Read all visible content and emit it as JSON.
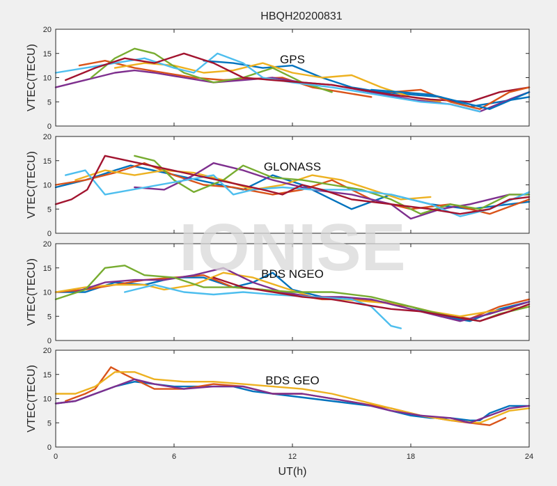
{
  "figure": {
    "title": "HBQH20200831",
    "xlabel": "UT(h)",
    "watermark": "IONISE"
  },
  "chart_data": [
    {
      "type": "line",
      "annotation": "GPS",
      "ylabel": "VTEC(TECU)",
      "xlim": [
        0,
        24
      ],
      "ylim": [
        0,
        20
      ],
      "x_ticks": [
        0,
        6,
        12,
        18,
        24
      ],
      "y_ticks": [
        0,
        5,
        10,
        15,
        20
      ],
      "series": [
        {
          "color": "#0072BD",
          "x": [
            7.5,
            9,
            10.5,
            12,
            13.5,
            15,
            16.5,
            18,
            19.5,
            21,
            22.5,
            24
          ],
          "y": [
            13.5,
            13,
            12,
            12.5,
            10,
            8,
            7,
            6.5,
            6,
            4,
            5,
            6
          ]
        },
        {
          "color": "#D95319",
          "x": [
            1.2,
            2.5,
            4,
            5.5,
            7,
            8.5,
            10,
            11.5,
            13,
            14.5,
            16
          ],
          "y": [
            12.5,
            13.5,
            12,
            11,
            10,
            9.5,
            9.8,
            10,
            8,
            7,
            6
          ]
        },
        {
          "color": "#EDB120",
          "x": [
            3,
            4.5,
            6,
            7.5,
            9,
            10.5,
            12,
            13.5,
            15,
            16.5,
            18,
            19.5
          ],
          "y": [
            12,
            13,
            12.5,
            11,
            11.5,
            13,
            11,
            10,
            10.5,
            8,
            6,
            5
          ]
        },
        {
          "color": "#7E2F8E",
          "x": [
            0,
            1,
            2,
            3,
            4,
            5,
            6.5,
            8,
            9.5,
            11,
            12.5,
            14,
            16,
            18,
            20,
            21.5,
            23,
            24
          ],
          "y": [
            8,
            9,
            10,
            11,
            11.5,
            11,
            10,
            9,
            9.5,
            10,
            9,
            8.5,
            7,
            5.5,
            4.5,
            3,
            5.5,
            7
          ]
        },
        {
          "color": "#77AC30",
          "x": [
            1.8,
            3,
            4,
            5,
            6.5,
            8,
            9.5,
            11,
            12.5,
            14
          ],
          "y": [
            10,
            14,
            16,
            15,
            11,
            9,
            10,
            12,
            9,
            7
          ]
        },
        {
          "color": "#4DBEEE",
          "x": [
            0,
            1.5,
            3,
            4.5,
            6,
            7,
            8.2,
            9.5,
            10.5,
            12,
            14,
            15.5,
            17,
            18.5,
            20,
            21.5
          ],
          "y": [
            11,
            12,
            13,
            14,
            12,
            11,
            15,
            13,
            10,
            9,
            8,
            7,
            6,
            5,
            4.5,
            3
          ]
        },
        {
          "color": "#A2142F",
          "x": [
            0.5,
            2,
            3.5,
            5,
            6.5,
            8,
            9.5,
            11,
            12.5,
            14,
            15.5,
            17,
            19,
            21,
            22.5,
            24
          ],
          "y": [
            9.5,
            12,
            14,
            13,
            15,
            13,
            10,
            9.5,
            9,
            8.5,
            7.5,
            6.5,
            5.5,
            5,
            7,
            8
          ]
        },
        {
          "color": "#D95319",
          "x": [
            17,
            18.5,
            20,
            21.5,
            23,
            24
          ],
          "y": [
            7,
            7.5,
            5,
            3.5,
            7,
            8
          ]
        },
        {
          "color": "#0072BD",
          "x": [
            16,
            17.5,
            19,
            20.5,
            22,
            24
          ],
          "y": [
            7.5,
            7,
            6.5,
            5,
            3.5,
            7
          ]
        }
      ]
    },
    {
      "type": "line",
      "annotation": "GLONASS",
      "ylabel": "VTEC(TECU)",
      "xlim": [
        0,
        24
      ],
      "ylim": [
        0,
        20
      ],
      "x_ticks": [
        0,
        6,
        12,
        18,
        24
      ],
      "y_ticks": [
        0,
        5,
        10,
        15,
        20
      ],
      "series": [
        {
          "color": "#0072BD",
          "x": [
            0,
            1.5,
            3,
            3.8,
            9.5,
            11,
            12.5,
            14,
            15,
            17,
            19,
            21,
            23,
            24
          ],
          "y": [
            9.5,
            11,
            13,
            14,
            9,
            12,
            10,
            7,
            5,
            8,
            6,
            5,
            6,
            6.5
          ]
        },
        {
          "color": "#D95319",
          "x": [
            0,
            1.5,
            3,
            4.5,
            6,
            7.5,
            9,
            11,
            12.5,
            14,
            16,
            18,
            20,
            22,
            24
          ],
          "y": [
            10,
            11,
            12.5,
            14.5,
            12,
            10,
            9.5,
            8,
            9,
            11,
            7,
            5,
            6,
            4,
            7
          ]
        },
        {
          "color": "#EDB120",
          "x": [
            1,
            2.5,
            4,
            5.5,
            7,
            8.5,
            10,
            11.5,
            13,
            14.5,
            16,
            17.5,
            19
          ],
          "y": [
            11,
            13,
            12,
            13,
            12.5,
            11,
            9,
            10,
            12,
            11,
            9,
            7,
            7.5
          ]
        },
        {
          "color": "#7E2F8E",
          "x": [
            4,
            5.5,
            7,
            8,
            9.5,
            11,
            13,
            15,
            17,
            18,
            19.5,
            21,
            23,
            24
          ],
          "y": [
            9.5,
            9,
            12,
            14.5,
            13,
            11,
            9,
            8,
            6,
            3,
            5,
            6,
            8,
            8
          ]
        },
        {
          "color": "#77AC30",
          "x": [
            4,
            5,
            6,
            7,
            8.5,
            9.5,
            11,
            12.5,
            14,
            15.5,
            17,
            18.5,
            20,
            21.5,
            23,
            24
          ],
          "y": [
            16,
            15,
            11,
            8.5,
            11,
            14,
            11.5,
            11,
            10,
            9,
            7,
            4,
            6,
            5,
            8,
            8
          ]
        },
        {
          "color": "#4DBEEE",
          "x": [
            0.5,
            1.5,
            2.5,
            8,
            9,
            10,
            11.5,
            13,
            15,
            17,
            19,
            20.5,
            22,
            24
          ],
          "y": [
            12,
            13,
            8,
            12,
            8,
            9,
            9.5,
            9,
            9,
            8,
            6,
            3.5,
            5,
            8.5
          ]
        },
        {
          "color": "#A2142F",
          "x": [
            0,
            0.8,
            1.6,
            2.5,
            10.5,
            11.5,
            12.5,
            13.5,
            15,
            17,
            19,
            20.5,
            22,
            23,
            24
          ],
          "y": [
            6,
            7,
            9,
            16,
            9,
            8,
            10,
            9,
            7,
            6,
            5,
            4,
            5,
            7,
            7.5
          ]
        }
      ]
    },
    {
      "type": "line",
      "annotation": "BDS NGEO",
      "ylabel": "VTEC(TECU)",
      "xlim": [
        0,
        24
      ],
      "ylim": [
        0,
        20
      ],
      "x_ticks": [
        0,
        6,
        12,
        18,
        24
      ],
      "y_ticks": [
        0,
        5,
        10,
        15,
        20
      ],
      "series": [
        {
          "color": "#0072BD",
          "x": [
            0,
            1.5,
            3,
            4.5,
            6,
            7.5,
            9,
            10,
            11,
            12,
            13.5,
            15,
            16.5,
            18,
            19.5,
            21,
            22.5,
            24
          ],
          "y": [
            10,
            10,
            12,
            11.5,
            13,
            13,
            11,
            12,
            14,
            10.5,
            9,
            8.5,
            8,
            7,
            5,
            4,
            6.5,
            8
          ]
        },
        {
          "color": "#D95319",
          "x": [
            0,
            1.5,
            3,
            4.5,
            6,
            7.5,
            9,
            10.5,
            12,
            13.5,
            15,
            16.5,
            18,
            19.5,
            21,
            22.5,
            24
          ],
          "y": [
            10,
            10.5,
            11.5,
            12.5,
            13,
            13.5,
            11,
            10.5,
            9.5,
            8.5,
            8.5,
            8,
            7,
            5.5,
            4.5,
            7,
            8.5
          ]
        },
        {
          "color": "#EDB120",
          "x": [
            0,
            1.5,
            3,
            4.5,
            5.5,
            7,
            8.5,
            10,
            11.5,
            13,
            14.5,
            16,
            17.5,
            19,
            20.5,
            22,
            24
          ],
          "y": [
            10,
            11,
            11.5,
            11.5,
            10.5,
            11.5,
            14,
            13,
            11,
            9,
            8.5,
            8,
            7.5,
            6,
            5,
            6,
            7
          ]
        },
        {
          "color": "#7E2F8E",
          "x": [
            1,
            2.5,
            4,
            5.5,
            7,
            8.5,
            10,
            11.5,
            13,
            14.5,
            16,
            17.5,
            19,
            20.5,
            22,
            24
          ],
          "y": [
            10,
            12,
            12.5,
            12.5,
            13.5,
            15,
            12,
            10,
            9,
            9,
            8.5,
            7,
            5.5,
            4,
            5.5,
            8
          ]
        },
        {
          "color": "#77AC30",
          "x": [
            0,
            1.5,
            2.5,
            3.5,
            4.5,
            6,
            7.5,
            9,
            10.5,
            12,
            14,
            16,
            18,
            20,
            21.5,
            22.5,
            24
          ],
          "y": [
            8.5,
            10.5,
            15,
            15.5,
            13.5,
            13,
            11,
            11,
            10.5,
            10,
            10,
            9,
            7,
            5,
            4,
            5.5,
            7
          ]
        },
        {
          "color": "#4DBEEE",
          "x": [
            3.5,
            5,
            6.5,
            8,
            9.5,
            11,
            13,
            15,
            16,
            17,
            17.5
          ],
          "y": [
            10,
            11.5,
            10,
            9.5,
            10,
            9.5,
            9,
            8.5,
            7,
            3,
            2.5
          ]
        },
        {
          "color": "#A2142F",
          "x": [
            8,
            9.5,
            11,
            12.5,
            14,
            15.5,
            17,
            18.5,
            20,
            21.5,
            23,
            24
          ],
          "y": [
            13,
            11,
            10,
            9,
            8.5,
            7.5,
            6.5,
            6,
            5,
            4,
            6,
            7.5
          ]
        }
      ]
    },
    {
      "type": "line",
      "annotation": "BDS GEO",
      "ylabel": "VTEC(TECU)",
      "xlim": [
        0,
        24
      ],
      "ylim": [
        0,
        20
      ],
      "x_ticks": [
        0,
        6,
        12,
        18,
        24
      ],
      "y_ticks": [
        0,
        5,
        10,
        15,
        20
      ],
      "series": [
        {
          "color": "#0072BD",
          "x": [
            0,
            1,
            2,
            3,
            4,
            5,
            6,
            7,
            8,
            9,
            10,
            11,
            12,
            13,
            14,
            15,
            16,
            17,
            18,
            19,
            20,
            21,
            21.5,
            22,
            23,
            24
          ],
          "y": [
            9,
            9.5,
            11,
            12.5,
            13.5,
            13,
            12.5,
            12.5,
            12.5,
            12.5,
            11.5,
            11,
            10.5,
            10,
            9.5,
            9,
            8.5,
            7.5,
            6.5,
            6,
            6,
            5.5,
            5.5,
            7,
            8.5,
            8.5
          ]
        },
        {
          "color": "#D95319",
          "x": [
            0.5,
            1.5,
            2,
            2.8,
            3.5,
            5,
            6.5,
            8,
            9.5,
            11,
            12.5,
            14,
            15.5,
            17,
            18.5,
            20,
            21,
            22,
            22.8
          ],
          "y": [
            9.5,
            11,
            12,
            16.5,
            15,
            12,
            12,
            13,
            12.5,
            11,
            11,
            10,
            9,
            8,
            6.5,
            5.5,
            5,
            4.5,
            6
          ]
        },
        {
          "color": "#EDB120",
          "x": [
            0,
            1,
            2,
            3,
            4,
            5,
            6.5,
            8,
            9.5,
            11,
            12.5,
            14,
            15.5,
            17,
            18.5,
            20,
            21.5,
            23,
            24
          ],
          "y": [
            11,
            11,
            12.5,
            15.5,
            15.5,
            14,
            13.5,
            13.5,
            13,
            12.5,
            12,
            11,
            9.5,
            8,
            6.5,
            5.5,
            5,
            7.5,
            8
          ]
        },
        {
          "color": "#7E2F8E",
          "x": [
            0,
            1,
            2,
            3,
            4,
            5,
            6.5,
            8,
            9.5,
            11,
            12.5,
            14,
            15.5,
            17,
            18.5,
            20,
            21,
            22,
            23,
            24
          ],
          "y": [
            9,
            9.5,
            11,
            12.5,
            14,
            13,
            12,
            12.5,
            12.5,
            11,
            11,
            10,
            9,
            7.5,
            6.5,
            6,
            5,
            6.5,
            8,
            8.5
          ]
        }
      ]
    }
  ]
}
